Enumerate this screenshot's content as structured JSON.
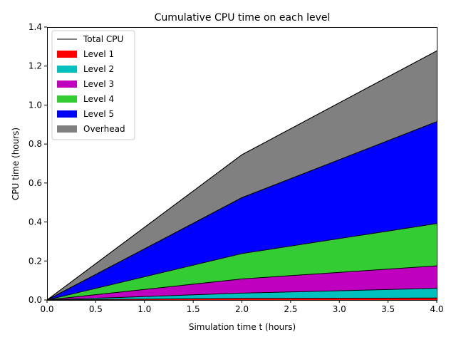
{
  "chart_data": {
    "type": "area",
    "title": "Cumulative CPU time on each level",
    "xlabel": "Simulation time t (hours)",
    "ylabel": "CPU time (hours)",
    "xlim": [
      0.0,
      4.0
    ],
    "ylim": [
      0.0,
      1.4
    ],
    "x_ticks": [
      "0.0",
      "0.5",
      "1.0",
      "1.5",
      "2.0",
      "2.5",
      "3.0",
      "3.5",
      "4.0"
    ],
    "y_ticks": [
      "0.0",
      "0.2",
      "0.4",
      "0.6",
      "0.8",
      "1.0",
      "1.2",
      "1.4"
    ],
    "x": [
      0.0,
      2.0,
      4.0
    ],
    "stacked": true,
    "grid": false,
    "legend_position": "top-left",
    "total_line": {
      "name": "Total CPU",
      "color": "#000000",
      "values": [
        0.0,
        0.745,
        1.278
      ]
    },
    "series": [
      {
        "name": "Level 1",
        "color": "#ff0000",
        "values": [
          0.0,
          0.008,
          0.01
        ]
      },
      {
        "name": "Level 2",
        "color": "#00bfbf",
        "values": [
          0.0,
          0.027,
          0.05
        ]
      },
      {
        "name": "Level 3",
        "color": "#bf00bf",
        "values": [
          0.0,
          0.073,
          0.115
        ]
      },
      {
        "name": "Level 4",
        "color": "#33cc33",
        "values": [
          0.0,
          0.13,
          0.217
        ]
      },
      {
        "name": "Level 5",
        "color": "#0000ff",
        "values": [
          0.0,
          0.287,
          0.523
        ]
      },
      {
        "name": "Overhead",
        "color": "#808080",
        "values": [
          0.0,
          0.22,
          0.363
        ]
      }
    ]
  }
}
